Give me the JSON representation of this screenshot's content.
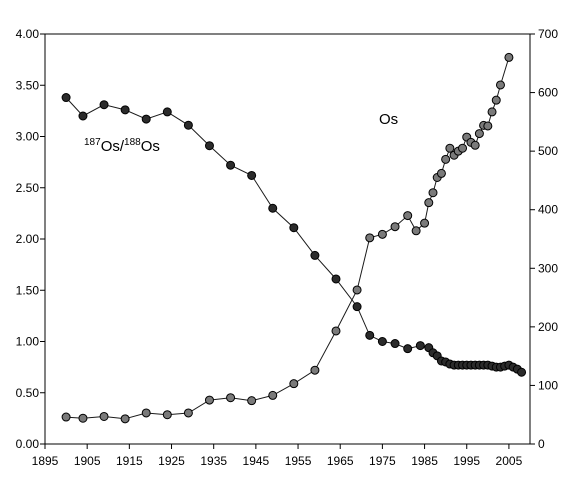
{
  "chart_data": {
    "type": "line",
    "title": "",
    "xlabel": "",
    "ylabel": "",
    "y2label": "",
    "xlim": [
      1895,
      2010
    ],
    "ylim": [
      0,
      4
    ],
    "y2lim": [
      0,
      700
    ],
    "grid": false,
    "legend": "none",
    "x_ticks": [
      "1895",
      "1905",
      "1915",
      "1925",
      "1935",
      "1945",
      "1955",
      "1965",
      "1975",
      "1985",
      "1995",
      "2005"
    ],
    "y_ticks": [
      "0.00",
      "0.50",
      "1.00",
      "1.50",
      "2.00",
      "2.50",
      "3.00",
      "3.50",
      "4.00"
    ],
    "y2_ticks": [
      "0",
      "100",
      "200",
      "300",
      "400",
      "500",
      "600",
      "700"
    ],
    "annotations": {
      "ratio": {
        "sup1": "187",
        "base1": "Os/",
        "sup2": "188",
        "base2": "Os"
      },
      "os": "Os"
    },
    "series": [
      {
        "axis": "left",
        "color": "#2b2b2b",
        "points": [
          [
            1900,
            3.38
          ],
          [
            1904,
            3.2
          ],
          [
            1909,
            3.31
          ],
          [
            1914,
            3.26
          ],
          [
            1919,
            3.17
          ],
          [
            1924,
            3.24
          ],
          [
            1929,
            3.11
          ],
          [
            1934,
            2.91
          ],
          [
            1939,
            2.72
          ],
          [
            1944,
            2.62
          ],
          [
            1949,
            2.3
          ],
          [
            1954,
            2.11
          ],
          [
            1959,
            1.84
          ],
          [
            1964,
            1.61
          ],
          [
            1969,
            1.34
          ],
          [
            1972,
            1.06
          ],
          [
            1975,
            1.0
          ],
          [
            1978,
            0.98
          ],
          [
            1981,
            0.93
          ],
          [
            1984,
            0.96
          ],
          [
            1986,
            0.94
          ],
          [
            1987,
            0.89
          ],
          [
            1988,
            0.86
          ],
          [
            1989,
            0.81
          ],
          [
            1990,
            0.8
          ],
          [
            1991,
            0.78
          ],
          [
            1992,
            0.77
          ],
          [
            1993,
            0.77
          ],
          [
            1994,
            0.77
          ],
          [
            1995,
            0.77
          ],
          [
            1996,
            0.77
          ],
          [
            1997,
            0.77
          ],
          [
            1998,
            0.77
          ],
          [
            1999,
            0.77
          ],
          [
            2000,
            0.77
          ],
          [
            2001,
            0.76
          ],
          [
            2002,
            0.75
          ],
          [
            2003,
            0.75
          ],
          [
            2004,
            0.76
          ],
          [
            2005,
            0.77
          ],
          [
            2006,
            0.75
          ],
          [
            2007,
            0.73
          ],
          [
            2008,
            0.7
          ]
        ]
      },
      {
        "axis": "right",
        "color": "#7a7a7a",
        "points": [
          [
            1900,
            46
          ],
          [
            1904,
            44
          ],
          [
            1909,
            47
          ],
          [
            1914,
            43
          ],
          [
            1919,
            53
          ],
          [
            1924,
            50
          ],
          [
            1929,
            53
          ],
          [
            1934,
            75
          ],
          [
            1939,
            79
          ],
          [
            1944,
            74
          ],
          [
            1949,
            83
          ],
          [
            1954,
            103
          ],
          [
            1959,
            126
          ],
          [
            1964,
            193
          ],
          [
            1969,
            263
          ],
          [
            1972,
            352
          ],
          [
            1975,
            358
          ],
          [
            1978,
            371
          ],
          [
            1981,
            390
          ],
          [
            1983,
            364
          ],
          [
            1985,
            377
          ],
          [
            1986,
            412
          ],
          [
            1987,
            429
          ],
          [
            1988,
            455
          ],
          [
            1989,
            462
          ],
          [
            1990,
            486
          ],
          [
            1991,
            505
          ],
          [
            1992,
            493
          ],
          [
            1993,
            500
          ],
          [
            1994,
            505
          ],
          [
            1995,
            524
          ],
          [
            1996,
            515
          ],
          [
            1997,
            510
          ],
          [
            1998,
            530
          ],
          [
            1999,
            544
          ],
          [
            2000,
            543
          ],
          [
            2001,
            567
          ],
          [
            2002,
            587
          ],
          [
            2003,
            613
          ],
          [
            2005,
            660
          ]
        ]
      }
    ]
  }
}
